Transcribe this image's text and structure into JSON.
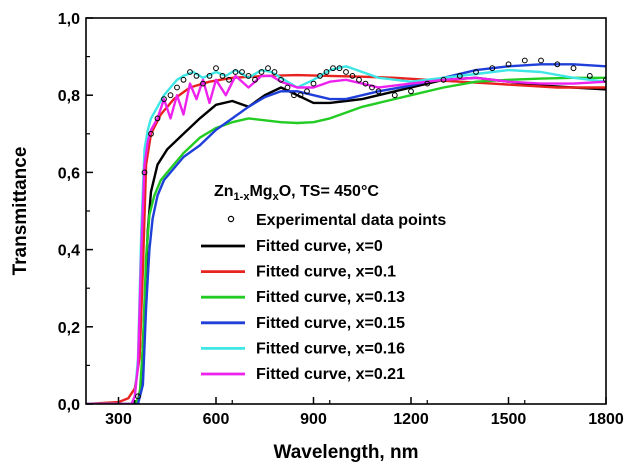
{
  "chart_data": {
    "type": "line",
    "xlabel": "Wavelength, nm",
    "ylabel": "Transmittance",
    "xlim": [
      200,
      1800
    ],
    "ylim": [
      0,
      1.0
    ],
    "x_ticks": [
      300,
      600,
      900,
      1200,
      1500,
      1800
    ],
    "x_tick_labels": [
      "300",
      "600",
      "900",
      "1200",
      "1500",
      "1800"
    ],
    "y_ticks": [
      0,
      0.2,
      0.4,
      0.6,
      0.8,
      1.0
    ],
    "y_tick_labels": [
      "0,0",
      "0,2",
      "0,4",
      "0,6",
      "0,8",
      "1,0"
    ],
    "grid": false,
    "legend_placement": "center-right",
    "legend": {
      "title_parts": [
        "Zn",
        "1-x",
        "Mg",
        "x",
        "O, TS= 450°C"
      ],
      "markers_label": "Experimental data points"
    },
    "series": [
      {
        "name": "Fitted curve, x=0",
        "color": "#000000",
        "x": [
          200,
          340,
          360,
          370,
          380,
          390,
          400,
          420,
          450,
          500,
          550,
          600,
          650,
          700,
          750,
          800,
          850,
          900,
          950,
          1000,
          1050,
          1100,
          1200,
          1300,
          1400,
          1500,
          1600,
          1700,
          1800
        ],
        "y": [
          0.0,
          0.0,
          0.01,
          0.05,
          0.25,
          0.45,
          0.55,
          0.62,
          0.66,
          0.7,
          0.74,
          0.775,
          0.785,
          0.77,
          0.8,
          0.82,
          0.8,
          0.78,
          0.78,
          0.785,
          0.79,
          0.8,
          0.82,
          0.84,
          0.845,
          0.835,
          0.825,
          0.82,
          0.815
        ]
      },
      {
        "name": "Fitted curve, x=0.1",
        "color": "#e8231f",
        "x": [
          200,
          300,
          330,
          350,
          365,
          375,
          385,
          400,
          430,
          470,
          520,
          580,
          650,
          750,
          850,
          950,
          1050,
          1150,
          1250,
          1350,
          1450,
          1550,
          1650,
          1750,
          1800
        ],
        "y": [
          0.0,
          0.005,
          0.015,
          0.04,
          0.12,
          0.35,
          0.62,
          0.7,
          0.75,
          0.79,
          0.82,
          0.835,
          0.845,
          0.85,
          0.852,
          0.85,
          0.848,
          0.845,
          0.84,
          0.835,
          0.83,
          0.825,
          0.82,
          0.82,
          0.82
        ]
      },
      {
        "name": "Fitted curve, x=0.13",
        "color": "#22cc22",
        "x": [
          200,
          350,
          365,
          375,
          385,
          395,
          410,
          430,
          460,
          500,
          550,
          600,
          650,
          700,
          750,
          800,
          850,
          900,
          950,
          1000,
          1050,
          1100,
          1200,
          1300,
          1400,
          1500,
          1600,
          1700,
          1800
        ],
        "y": [
          0.0,
          0.0,
          0.02,
          0.15,
          0.38,
          0.49,
          0.54,
          0.58,
          0.61,
          0.65,
          0.69,
          0.715,
          0.73,
          0.74,
          0.735,
          0.73,
          0.728,
          0.73,
          0.74,
          0.755,
          0.77,
          0.78,
          0.8,
          0.82,
          0.835,
          0.84,
          0.843,
          0.845,
          0.845
        ]
      },
      {
        "name": "Fitted curve, x=0.15",
        "color": "#1f3fd9",
        "x": [
          200,
          360,
          375,
          385,
          395,
          405,
          420,
          440,
          470,
          500,
          550,
          600,
          650,
          700,
          750,
          800,
          850,
          900,
          950,
          1000,
          1050,
          1100,
          1200,
          1300,
          1400,
          1500,
          1600,
          1700,
          1800
        ],
        "y": [
          0.0,
          0.0,
          0.05,
          0.25,
          0.4,
          0.48,
          0.54,
          0.58,
          0.61,
          0.64,
          0.67,
          0.71,
          0.74,
          0.77,
          0.795,
          0.81,
          0.81,
          0.8,
          0.79,
          0.79,
          0.8,
          0.81,
          0.825,
          0.845,
          0.865,
          0.875,
          0.88,
          0.88,
          0.875
        ]
      },
      {
        "name": "Fitted curve, x=0.16",
        "color": "#3ee6e6",
        "x": [
          200,
          340,
          350,
          360,
          370,
          380,
          390,
          400,
          420,
          440,
          460,
          480,
          500,
          530,
          560,
          600,
          630,
          660,
          700,
          740,
          770,
          800,
          850,
          900,
          950,
          1000,
          1050,
          1100,
          1200,
          1300,
          1400,
          1500,
          1600,
          1700,
          1800
        ],
        "y": [
          0.0,
          0.0,
          0.02,
          0.12,
          0.45,
          0.66,
          0.71,
          0.74,
          0.77,
          0.8,
          0.82,
          0.84,
          0.85,
          0.86,
          0.845,
          0.86,
          0.85,
          0.865,
          0.845,
          0.865,
          0.86,
          0.845,
          0.82,
          0.84,
          0.865,
          0.875,
          0.86,
          0.845,
          0.835,
          0.845,
          0.855,
          0.865,
          0.86,
          0.845,
          0.835
        ]
      },
      {
        "name": "Fitted curve, x=0.21",
        "color": "#ee22ee",
        "x": [
          200,
          340,
          350,
          360,
          370,
          380,
          390,
          400,
          420,
          440,
          460,
          480,
          500,
          520,
          540,
          560,
          580,
          600,
          630,
          660,
          700,
          740,
          770,
          800,
          850,
          900,
          950,
          1000,
          1050,
          1100,
          1200,
          1300,
          1400,
          1500,
          1600,
          1700,
          1800
        ],
        "y": [
          0.0,
          0.0,
          0.02,
          0.1,
          0.4,
          0.62,
          0.68,
          0.71,
          0.74,
          0.79,
          0.74,
          0.8,
          0.75,
          0.83,
          0.79,
          0.84,
          0.78,
          0.84,
          0.8,
          0.85,
          0.82,
          0.85,
          0.85,
          0.835,
          0.82,
          0.82,
          0.835,
          0.84,
          0.83,
          0.82,
          0.83,
          0.84,
          0.845,
          0.835,
          0.83,
          0.83,
          0.835
        ]
      }
    ],
    "experimental": {
      "name": "Experimental data points",
      "color": "#000000",
      "x": [
        360,
        380,
        400,
        420,
        440,
        460,
        480,
        500,
        520,
        540,
        560,
        580,
        600,
        620,
        640,
        660,
        680,
        700,
        720,
        740,
        760,
        780,
        800,
        820,
        840,
        860,
        880,
        900,
        920,
        940,
        960,
        980,
        1000,
        1020,
        1040,
        1060,
        1080,
        1100,
        1150,
        1200,
        1250,
        1300,
        1350,
        1400,
        1450,
        1500,
        1550,
        1600,
        1650,
        1700,
        1750,
        1800
      ],
      "y": [
        0.02,
        0.6,
        0.7,
        0.74,
        0.79,
        0.8,
        0.82,
        0.84,
        0.86,
        0.85,
        0.83,
        0.85,
        0.87,
        0.85,
        0.84,
        0.86,
        0.86,
        0.85,
        0.84,
        0.86,
        0.87,
        0.86,
        0.84,
        0.82,
        0.8,
        0.8,
        0.81,
        0.83,
        0.85,
        0.86,
        0.87,
        0.87,
        0.86,
        0.85,
        0.84,
        0.83,
        0.82,
        0.81,
        0.8,
        0.81,
        0.83,
        0.84,
        0.85,
        0.86,
        0.87,
        0.88,
        0.89,
        0.89,
        0.88,
        0.87,
        0.85,
        0.84
      ]
    }
  }
}
